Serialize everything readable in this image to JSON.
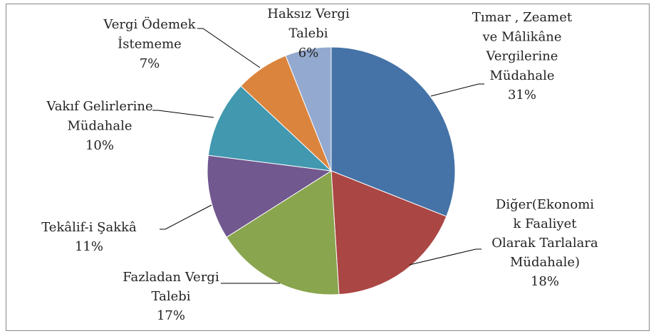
{
  "chart_data": {
    "type": "pie",
    "categories": [
      "Tımar , Zeamet\nve Mâlikâne\nVergilerine\nMüdahale",
      "Diğer(Ekonomi\nk Faaliyet\nOlarak Tarlalara\nMüdahale)",
      "Fazladan Vergi\nTalebi",
      "Tekâlif-i Şakkâ",
      "Vakıf Gelirlerine\nMüdahale",
      "Vergi Ödemek\nİstememe",
      "Haksız Vergi\nTalebi"
    ],
    "values": [
      31,
      18,
      17,
      11,
      10,
      7,
      6
    ],
    "value_labels": [
      "31%",
      "18%",
      "17%",
      "11%",
      "10%",
      "7%",
      "6%"
    ],
    "colors": [
      "#4572a7",
      "#aa4643",
      "#89a54e",
      "#71588f",
      "#4198af",
      "#db843d",
      "#93a9cf"
    ]
  }
}
